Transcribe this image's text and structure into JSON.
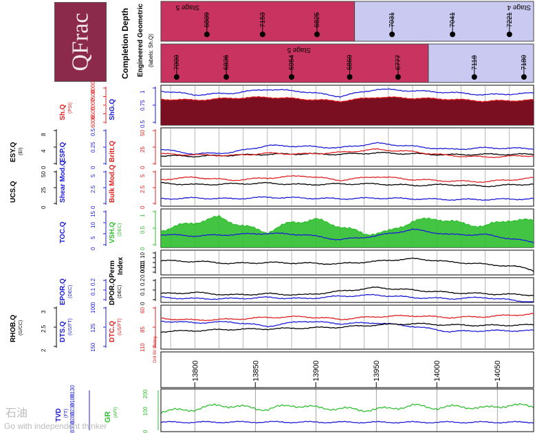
{
  "logo": {
    "text": "QFrac"
  },
  "header": {
    "title": "Completion Depth",
    "subtitle": "Engineered  Geometric",
    "note": "(labels: Sh.Q)"
  },
  "stages_top": [
    {
      "label": "Stage 5",
      "color": "#c9335f"
    },
    {
      "label": "Stage 4",
      "color": "#c9c9f2"
    }
  ],
  "stages_bottom": [
    {
      "label": "Stage 5",
      "color": "#c9335f"
    }
  ],
  "markers_top": [
    "6809",
    "7153",
    "6825",
    "7031",
    "7041",
    "7221"
  ],
  "markers_bottom": [
    "7000",
    "6836",
    "6954",
    "6860",
    "6777",
    "7118",
    "7180"
  ],
  "tracks": [
    {
      "name": "Sh.Q",
      "unit": "(PSI)",
      "color": "#e02020",
      "ticks": [
        "8000",
        "7500",
        "7000",
        "6500",
        "6000"
      ],
      "name2": "ShG.Q",
      "color2": "#1a1ad8",
      "ticks2": [
        "1",
        "0.75",
        "0.5"
      ]
    },
    {
      "name": "ESY.Q",
      "unit": "(EI)",
      "color": "#000000",
      "ticks": [
        "8",
        "4",
        "0"
      ],
      "name2": "ESP.Q",
      "color2": "#1a1ad8",
      "ticks2": [
        "0.5",
        "0.25",
        "0"
      ],
      "name3": "Britt.Q",
      "color3": "#e02020",
      "ticks3": [
        "50",
        "25",
        "0"
      ]
    },
    {
      "name": "UCS.Q",
      "color": "#000000",
      "ticks": [
        "50",
        "25",
        "0"
      ],
      "name2": "Shear Mod.Q",
      "color2": "#1a1ad8",
      "ticks2": [
        "5",
        "2.5",
        "0"
      ],
      "name3": "Bulk Mod.Q",
      "color3": "#e02020",
      "ticks3": [
        "5",
        "2.5",
        "0"
      ]
    },
    {
      "name": "TOC.Q",
      "color": "#1a1ad8",
      "ticks": [
        "15",
        "10",
        "5",
        "0"
      ],
      "name2": "VSH.Q",
      "unit2": "(DEC)",
      "color2": "#2fbf2f",
      "ticks2": [
        "1",
        "0.5",
        "0"
      ]
    },
    {
      "name": "Perm",
      "name_b": "Index",
      "color": "#000000",
      "ticks": [
        "10",
        "1",
        "0.1",
        "0.01",
        "0.001"
      ]
    },
    {
      "name": "EPOR.Q",
      "unit": "(DEC)",
      "color": "#1a1ad8",
      "ticks": [
        "0.2",
        "0.1",
        "0"
      ],
      "name2": "DPOR.Q",
      "unit2": "(DEC)",
      "color2": "#000000",
      "ticks2": [
        "0.2",
        "0.1",
        "0"
      ]
    },
    {
      "name": "RHOB.Q",
      "unit": "(G/CC)",
      "color": "#000000",
      "ticks": [
        "3",
        "2.5",
        "2"
      ],
      "name2": "DTS.Q",
      "unit2": "(US/FT)",
      "color2": "#1a1ad8",
      "ticks2": [
        "100",
        "125",
        "150"
      ],
      "name3": "DTC.Q",
      "unit3": "(US/FT)",
      "color3": "#e02020",
      "ticks3": [
        "60",
        "85",
        "110"
      ],
      "note": "Drill Bit Sliding"
    }
  ],
  "depth_track": {
    "ticks": [
      "13800",
      "13850",
      "13900",
      "13950",
      "14000",
      "14050"
    ]
  },
  "gr_track": {
    "tvd": "TVD",
    "tvd_unit": "(FT)",
    "tvd_ticks": [
      "8130",
      "8180",
      "8230",
      "8280",
      "8330"
    ],
    "name": "GR",
    "unit": "(API)",
    "color": "#2fbf2f",
    "ticks": [
      "200",
      "100",
      "0"
    ]
  },
  "watermark": {
    "cn": "石油",
    "en": "Go with independent thinker"
  },
  "chart_data": {
    "type": "line",
    "x_label": "Completion Depth",
    "x_range": [
      13772,
      14080
    ],
    "stage_boundary_top": 13932,
    "stage_boundary_bottom": 13993,
    "markers_top_depth": [
      13810,
      13856,
      13901,
      13963,
      14013,
      14060
    ],
    "markers_bottom_depth": [
      13785,
      13826,
      13880,
      13928,
      13968,
      14031,
      14072
    ],
    "series": [
      {
        "name": "Sh.Q",
        "track": 0,
        "x": [
          13772,
          13800,
          13830,
          13860,
          13890,
          13920,
          13950,
          13980,
          14010,
          14040,
          14080
        ],
        "y": [
          7300,
          7250,
          7350,
          7400,
          7300,
          7200,
          7400,
          7350,
          7300,
          7200,
          7250
        ]
      },
      {
        "name": "ShG.Q",
        "track": 0,
        "x": [
          13772,
          13800,
          13830,
          13860,
          13890,
          13920,
          13950,
          13980,
          14010,
          14040,
          14080
        ],
        "y": [
          0.93,
          0.88,
          0.9,
          0.95,
          0.92,
          0.86,
          0.95,
          0.93,
          0.91,
          0.88,
          0.9
        ]
      },
      {
        "name": "ESY.Q",
        "track": 1,
        "x": [
          13772,
          13800,
          13830,
          13860,
          13890,
          13920,
          13950,
          13980,
          14010,
          14040,
          14080
        ],
        "y": [
          2.2,
          2.1,
          2.3,
          2.5,
          2.6,
          2.5,
          2.8,
          2.6,
          2.4,
          2.5,
          2.5
        ]
      },
      {
        "name": "ESP.Q",
        "track": 1,
        "x": [
          13772,
          13800,
          13830,
          13860,
          13890,
          13920,
          13950,
          13980,
          14010,
          14040,
          14080
        ],
        "y": [
          0.22,
          0.16,
          0.18,
          0.27,
          0.26,
          0.24,
          0.3,
          0.26,
          0.22,
          0.24,
          0.23
        ]
      },
      {
        "name": "Britt.Q",
        "track": 1,
        "x": [
          13772,
          13800,
          13830,
          13860,
          13890,
          13920,
          13950,
          13980,
          14010,
          14040,
          14080
        ],
        "y": [
          16,
          15,
          14,
          17,
          16,
          18,
          22,
          19,
          14,
          12,
          14
        ]
      },
      {
        "name": "UCS.Q",
        "track": 2,
        "x": [
          13772,
          13800,
          13830,
          13860,
          13890,
          13920,
          13950,
          13980,
          14010,
          14040,
          14080
        ],
        "y": [
          31,
          29,
          30,
          31,
          29,
          30,
          30,
          28,
          29,
          27,
          30
        ]
      },
      {
        "name": "Shear Mod.Q",
        "track": 2,
        "x": [
          13772,
          13800,
          13830,
          13860,
          13890,
          13920,
          13950,
          13980,
          14010,
          14040,
          14080
        ],
        "y": [
          1.0,
          1.1,
          1.0,
          1.2,
          1.1,
          1.0,
          1.1,
          1.0,
          0.9,
          0.9,
          1.0
        ]
      },
      {
        "name": "Bulk Mod.Q",
        "track": 2,
        "x": [
          13772,
          13800,
          13830,
          13860,
          13890,
          13920,
          13950,
          13980,
          14010,
          14040,
          14080
        ],
        "y": [
          3.6,
          3.9,
          3.5,
          3.8,
          4.1,
          3.5,
          4.0,
          3.6,
          3.4,
          3.3,
          3.8
        ]
      },
      {
        "name": "VSH.Q",
        "track": 3,
        "x": [
          13772,
          13800,
          13820,
          13840,
          13860,
          13880,
          13900,
          13920,
          13940,
          13960,
          13980,
          14000,
          14020,
          14040,
          14060,
          14080
        ],
        "y": [
          0.45,
          0.65,
          0.78,
          0.55,
          0.4,
          0.65,
          0.72,
          0.55,
          0.35,
          0.4,
          0.68,
          0.75,
          0.62,
          0.55,
          0.72,
          0.68
        ]
      },
      {
        "name": "TOC.Q",
        "track": 3,
        "x": [
          13772,
          13800,
          13830,
          13860,
          13890,
          13920,
          13950,
          13980,
          14010,
          14040,
          14080
        ],
        "y": [
          5,
          4.5,
          5,
          5.5,
          5,
          3,
          4.5,
          7,
          5,
          5,
          2
        ]
      },
      {
        "name": "Perm Index",
        "track": 4,
        "x": [
          13772,
          13800,
          13830,
          13860,
          13890,
          13920,
          13950,
          13980,
          14010,
          14040,
          14080
        ],
        "y": [
          0.2,
          0.15,
          0.07,
          0.1,
          0.08,
          0.06,
          0.15,
          0.4,
          0.12,
          0.05,
          0.005
        ]
      },
      {
        "name": "DPOR.Q",
        "track": 5,
        "x": [
          13772,
          13800,
          13830,
          13860,
          13890,
          13920,
          13950,
          13980,
          14010,
          14040,
          14080
        ],
        "y": [
          0.07,
          0.08,
          0.06,
          0.07,
          0.06,
          0.09,
          0.12,
          0.1,
          0.08,
          0.07,
          0.06
        ]
      },
      {
        "name": "EPOR.Q",
        "track": 5,
        "x": [
          13772,
          13800,
          13830,
          13860,
          13890,
          13920,
          13950,
          13980,
          14010,
          14040,
          14080
        ],
        "y": [
          0.04,
          0.03,
          0.03,
          0.04,
          0.03,
          0.05,
          0.06,
          0.04,
          0.03,
          0.04,
          0.0
        ]
      },
      {
        "name": "DTC.Q",
        "track": 6,
        "x": [
          13772,
          13800,
          13830,
          13860,
          13890,
          13920,
          13950,
          13980,
          14010,
          14040,
          14080
        ],
        "y": [
          75,
          77,
          76,
          74,
          73,
          76,
          73,
          72,
          74,
          73,
          70
        ]
      },
      {
        "name": "DTS.Q",
        "track": 6,
        "x": [
          13772,
          13800,
          13830,
          13860,
          13890,
          13920,
          13950,
          13980,
          14010,
          14040,
          14080
        ],
        "y": [
          118,
          120,
          119,
          124,
          118,
          121,
          120,
          124,
          130,
          129,
          129
        ]
      },
      {
        "name": "RHOB.Q",
        "track": 6,
        "x": [
          13772,
          13800,
          13830,
          13860,
          13890,
          13920,
          13950,
          13980,
          14010,
          14040,
          14080
        ],
        "y": [
          2.4,
          2.42,
          2.45,
          2.46,
          2.48,
          2.5,
          2.55,
          2.58,
          2.55,
          2.54,
          2.55
        ]
      },
      {
        "name": "GR",
        "track": 7,
        "x": [
          13772,
          13800,
          13820,
          13840,
          13860,
          13880,
          13900,
          13920,
          13940,
          13960,
          13980,
          14000,
          14020,
          14040,
          14060,
          14080
        ],
        "y": [
          95,
          105,
          125,
          115,
          105,
          125,
          112,
          108,
          102,
          108,
          122,
          112,
          118,
          110,
          125,
          118
        ]
      },
      {
        "name": "TVD",
        "track": 7,
        "x": [
          13772,
          13850,
          13950,
          14080
        ],
        "y": [
          8286,
          8285,
          8286,
          8286
        ]
      }
    ]
  }
}
